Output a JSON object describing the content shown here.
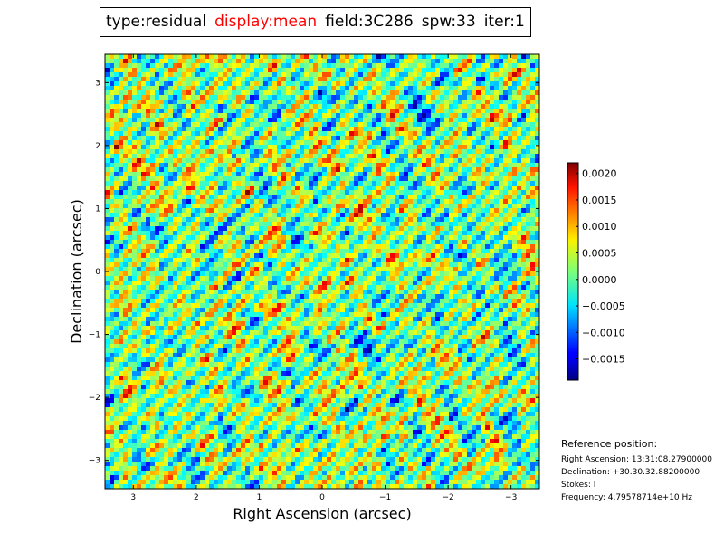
{
  "header": {
    "type_text": "type:residual",
    "display_text": "display:mean",
    "field_text": "field:3C286",
    "spw_text": "spw:33",
    "iter_text": "iter:1",
    "display_color": "#ff0000"
  },
  "chart_data": {
    "type": "heatmap",
    "title": "",
    "xlabel": "Right Ascension (arcsec)",
    "ylabel": "Declination (arcsec)",
    "xlim": [
      3.45,
      -3.45
    ],
    "ylim": [
      -3.45,
      3.45
    ],
    "x_ticks": [
      3,
      2,
      1,
      0,
      -1,
      -2,
      -3
    ],
    "x_tick_labels": [
      "3",
      "2",
      "1",
      "0",
      "−1",
      "−2",
      "−3"
    ],
    "y_ticks": [
      3,
      2,
      1,
      0,
      -1,
      -2,
      -3
    ],
    "y_tick_labels": [
      "3",
      "2",
      "1",
      "0",
      "−1",
      "−2",
      "−3"
    ],
    "colormap": "jet",
    "colorbar": {
      "vmin": -0.0019,
      "vmax": 0.0022,
      "ticks": [
        0.002,
        0.0015,
        0.001,
        0.0005,
        0.0,
        -0.0005,
        -0.001,
        -0.0015
      ],
      "tick_labels": [
        "0.0020",
        "0.0015",
        "0.0010",
        "0.0005",
        "0.0000",
        "−0.0005",
        "−0.0010",
        "−0.0015"
      ]
    },
    "grid": false,
    "legend": "none"
  },
  "reference": {
    "heading": "Reference position:",
    "ra": "Right Ascension: 13:31:08.27900000",
    "dec": "Declination: +30.30.32.88200000",
    "stokes": "Stokes: I",
    "frequency": "Frequency: 4.79578714e+10 Hz"
  }
}
